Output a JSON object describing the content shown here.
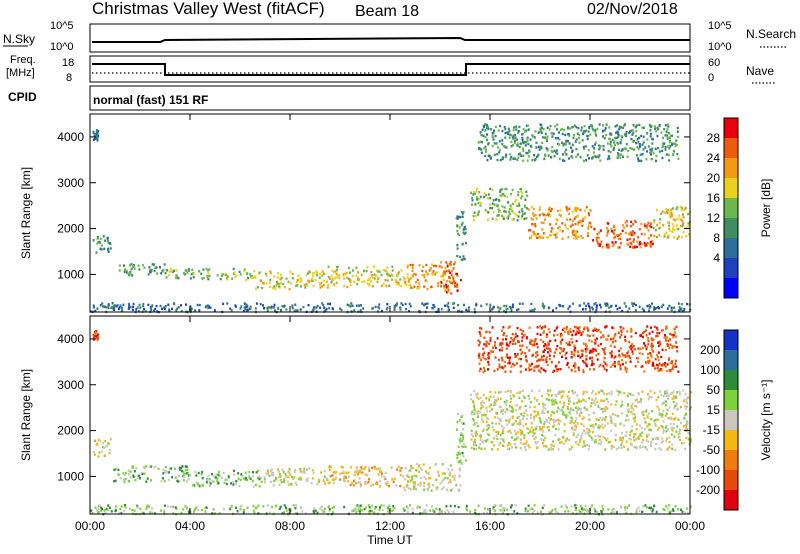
{
  "header": {
    "title": "Christmas Valley West (fitACF)",
    "beam": "Beam 18",
    "date": "02/Nov/2018"
  },
  "status_panels": {
    "nsky_label": "N.Sky",
    "nsearch_label": "N.Search",
    "freq_label_1": "Freq.",
    "freq_label_2": "[MHz]",
    "nave_label": "Nave",
    "cpid_label": "CPID",
    "log_tick_top": "10^5",
    "log_tick_bottom": "10^0",
    "freq_tick_top": "18",
    "freq_tick_bottom": "8",
    "nave_tick_top": "60",
    "nave_tick_bottom": "0",
    "mode_text": "normal (fast) 151 RF"
  },
  "chart_data": [
    {
      "type": "heatmap",
      "panel": "power",
      "xlabel": "",
      "ylabel": "Slant Range [km]",
      "x_ticks": [
        "00:00",
        "04:00",
        "08:00",
        "12:00",
        "16:00",
        "20:00",
        "00:00"
      ],
      "x_range_hours": [
        0,
        24
      ],
      "y_ticks": [
        1000,
        2000,
        3000,
        4000
      ],
      "y_range": [
        180,
        4500
      ],
      "colorbar_label": "Power [dB]",
      "colorbar_ticks": [
        "4",
        "8",
        "12",
        "16",
        "20",
        "24",
        "28"
      ],
      "colorbar_colors": [
        "#0000ff",
        "#2040c0",
        "#2b6f9a",
        "#3e8f5f",
        "#6cb84c",
        "#e8d21e",
        "#f49a13",
        "#f05a0c",
        "#e8000d"
      ],
      "regions": [
        {
          "t": [
            0.1,
            0.8
          ],
          "r": [
            1450,
            1900
          ],
          "level": 3
        },
        {
          "t": [
            0.1,
            0.3
          ],
          "r": [
            3950,
            4200
          ],
          "level": 2
        },
        {
          "t": [
            0.9,
            3.0
          ],
          "r": [
            1000,
            1250
          ],
          "level": 3
        },
        {
          "t": [
            3.0,
            6.5
          ],
          "r": [
            900,
            1150
          ],
          "level": 4
        },
        {
          "t": [
            6.5,
            9.5
          ],
          "r": [
            700,
            1100
          ],
          "level": 5
        },
        {
          "t": [
            9.5,
            12.5
          ],
          "r": [
            750,
            1200
          ],
          "level": 5
        },
        {
          "t": [
            12.5,
            14.5
          ],
          "r": [
            700,
            1250
          ],
          "level": 6
        },
        {
          "t": [
            14.0,
            14.8
          ],
          "r": [
            600,
            1300
          ],
          "level": 7
        },
        {
          "t": [
            14.6,
            15.0
          ],
          "r": [
            1300,
            2400
          ],
          "level": 3
        },
        {
          "t": [
            15.2,
            17.5
          ],
          "r": [
            2200,
            2900
          ],
          "level": 4
        },
        {
          "t": [
            17.5,
            20.0
          ],
          "r": [
            1800,
            2500
          ],
          "level": 6
        },
        {
          "t": [
            20.0,
            22.5
          ],
          "r": [
            1600,
            2200
          ],
          "level": 7
        },
        {
          "t": [
            22.5,
            24.0
          ],
          "r": [
            1800,
            2500
          ],
          "level": 5
        },
        {
          "t": [
            15.5,
            23.5
          ],
          "r": [
            3500,
            4300
          ],
          "level": 3
        },
        {
          "t": [
            0.0,
            24.0
          ],
          "r": [
            200,
            400
          ],
          "level": 2
        }
      ]
    },
    {
      "type": "heatmap",
      "panel": "velocity",
      "xlabel": "Time UT",
      "ylabel": "Slant Range [km]",
      "x_ticks": [
        "00:00",
        "04:00",
        "08:00",
        "12:00",
        "16:00",
        "20:00",
        "00:00"
      ],
      "x_range_hours": [
        0,
        24
      ],
      "y_ticks": [
        1000,
        2000,
        3000,
        4000
      ],
      "y_range": [
        180,
        4500
      ],
      "colorbar_label": "Velocity [m s⁻¹]",
      "colorbar_ticks": [
        "200",
        "100",
        "50",
        "15",
        "-15",
        "-50",
        "-100",
        "-200"
      ],
      "colorbar_colors": [
        "#1432c8",
        "#2b6f9a",
        "#2e8b3a",
        "#7fd13b",
        "#c8c8c0",
        "#f5b914",
        "#f07c10",
        "#e84a0c",
        "#e00010"
      ],
      "regions": [
        {
          "t": [
            0.1,
            0.8
          ],
          "r": [
            1450,
            1900
          ],
          "level": 4
        },
        {
          "t": [
            0.1,
            0.3
          ],
          "r": [
            4000,
            4200
          ],
          "level": 7
        },
        {
          "t": [
            0.9,
            4.0
          ],
          "r": [
            900,
            1250
          ],
          "level": 3
        },
        {
          "t": [
            4.0,
            7.0
          ],
          "r": [
            800,
            1150
          ],
          "level": 3
        },
        {
          "t": [
            7.0,
            9.5
          ],
          "r": [
            800,
            1200
          ],
          "level": 4
        },
        {
          "t": [
            9.5,
            12.5
          ],
          "r": [
            800,
            1250
          ],
          "level": 5
        },
        {
          "t": [
            12.5,
            14.8
          ],
          "r": [
            700,
            1300
          ],
          "level": 4
        },
        {
          "t": [
            14.6,
            15.0
          ],
          "r": [
            1300,
            2400
          ],
          "level": 3
        },
        {
          "t": [
            15.2,
            24.0
          ],
          "r": [
            1600,
            2900
          ],
          "level": 4
        },
        {
          "t": [
            15.5,
            23.5
          ],
          "r": [
            3300,
            4300
          ],
          "level": 7
        },
        {
          "t": [
            0.0,
            24.0
          ],
          "r": [
            200,
            400
          ],
          "level": 3
        }
      ]
    }
  ]
}
